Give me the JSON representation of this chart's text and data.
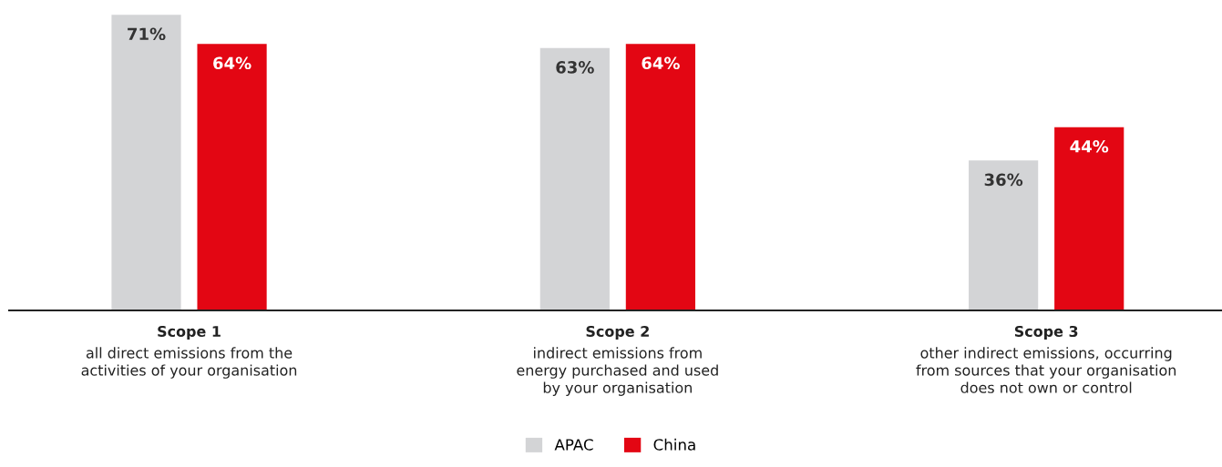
{
  "chart_data": {
    "type": "bar",
    "categories": [
      "Scope 1\nall direct emissions from the\nactivities of your organisation",
      "Scope 2\nindirect emissions from\nenergy purchased and used\nby your organisation",
      "Scope 3\nother indirect emissions, occurring\nfrom sources that your organisation\ndoes not own or control"
    ],
    "series": [
      {
        "name": "APAC",
        "color": "#d3d4d6",
        "values": [
          71,
          63,
          36
        ],
        "value_labels": [
          "71%",
          "63%",
          "36%"
        ]
      },
      {
        "name": "China",
        "color": "#e30613",
        "values": [
          64,
          64,
          44
        ],
        "value_labels": [
          "64%",
          "64%",
          "44%"
        ]
      }
    ],
    "tick_labels": "x",
    "legend": "bottom"
  }
}
